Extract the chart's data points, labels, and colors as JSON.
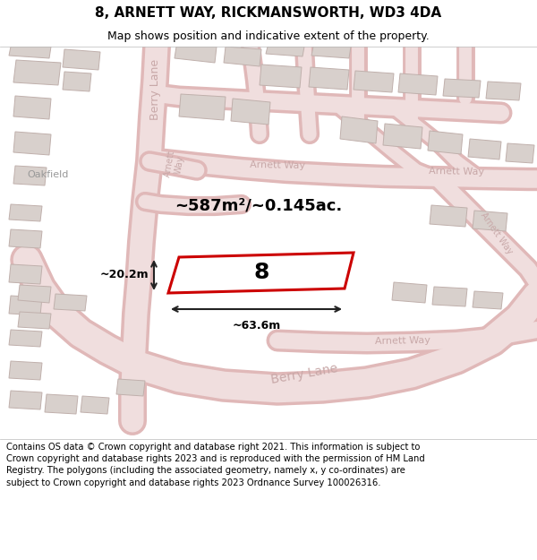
{
  "title": "8, ARNETT WAY, RICKMANSWORTH, WD3 4DA",
  "subtitle": "Map shows position and indicative extent of the property.",
  "footer": "Contains OS data © Crown copyright and database right 2021. This information is subject to Crown copyright and database rights 2023 and is reproduced with the permission of HM Land Registry. The polygons (including the associated geometry, namely x, y co-ordinates) are subject to Crown copyright and database rights 2023 Ordnance Survey 100026316.",
  "area_text": "~587m²/~0.145ac.",
  "width_label": "~63.6m",
  "height_label": "~20.2m",
  "house_number": "8",
  "map_bg": "#f7f2f2",
  "road_fill": "#f0dede",
  "road_edge": "#e0b8b8",
  "building_fill": "#d8d0cc",
  "building_edge": "#c0b0ac",
  "plot_fill": "#ffffff",
  "plot_edge": "#cc0000",
  "plot_lw": 2.2,
  "title_fs": 11,
  "subtitle_fs": 9,
  "footer_fs": 7.2,
  "area_fs": 13,
  "label_fs": 9,
  "road_label_color": "#c8a8a8",
  "dim_color": "#222222"
}
